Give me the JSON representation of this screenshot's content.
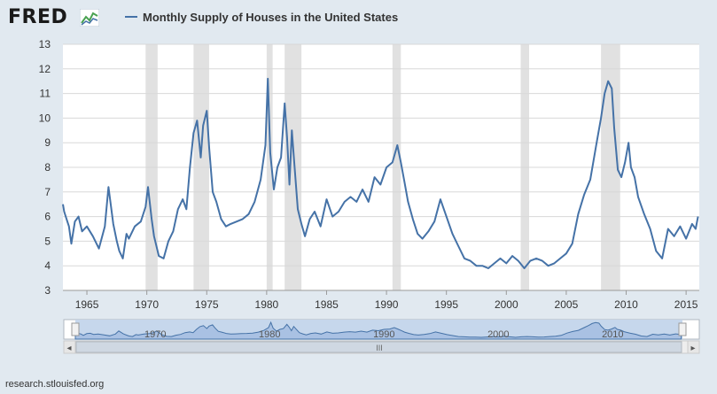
{
  "header": {
    "logo_text": "FRED",
    "legend_label": "Monthly Supply of Houses in the United States"
  },
  "footer": {
    "source": "research.stlouisfed.org"
  },
  "navigator": {
    "labels": [
      "1970",
      "1980",
      "1990",
      "2000",
      "2010"
    ],
    "handle_glyph": "III",
    "left_arrow": "◂",
    "right_arrow": "▸"
  },
  "colors": {
    "series": "#4572a7",
    "recession": "#e1e1e1",
    "plot_bg": "#ffffff",
    "page_bg": "#e1e9f0"
  },
  "chart_data": {
    "type": "line",
    "title": "",
    "xlabel": "",
    "ylabel": "",
    "grid": true,
    "legend": "top-left",
    "xlim": [
      1963.0,
      2016.1
    ],
    "ylim": [
      3,
      13
    ],
    "x_ticks": [
      1965,
      1970,
      1975,
      1980,
      1985,
      1990,
      1995,
      2000,
      2005,
      2010,
      2015
    ],
    "y_ticks": [
      3,
      4,
      5,
      6,
      7,
      8,
      9,
      10,
      11,
      12,
      13
    ],
    "recessions": [
      [
        1969.9,
        1970.9
      ],
      [
        1973.9,
        1975.2
      ],
      [
        1980.0,
        1980.5
      ],
      [
        1981.5,
        1982.9
      ],
      [
        1990.5,
        1991.2
      ],
      [
        2001.2,
        2001.9
      ],
      [
        2007.9,
        2009.5
      ]
    ],
    "series": [
      {
        "name": "Monthly Supply of Houses in the United States",
        "x": [
          1963.0,
          1963.1,
          1963.3,
          1963.5,
          1963.7,
          1964.0,
          1964.3,
          1964.6,
          1965.0,
          1965.5,
          1966.0,
          1966.5,
          1966.8,
          1967.2,
          1967.5,
          1967.7,
          1968.0,
          1968.3,
          1968.5,
          1969.0,
          1969.5,
          1969.9,
          1970.1,
          1970.4,
          1970.6,
          1971.0,
          1971.4,
          1971.8,
          1972.2,
          1972.6,
          1973.0,
          1973.3,
          1973.6,
          1973.9,
          1974.2,
          1974.5,
          1974.7,
          1975.0,
          1975.2,
          1975.5,
          1975.8,
          1976.2,
          1976.6,
          1977.0,
          1977.5,
          1978.0,
          1978.5,
          1979.0,
          1979.5,
          1979.9,
          1980.1,
          1980.3,
          1980.6,
          1980.9,
          1981.2,
          1981.5,
          1981.7,
          1981.9,
          1982.1,
          1982.3,
          1982.6,
          1982.9,
          1983.2,
          1983.6,
          1984.0,
          1984.5,
          1985.0,
          1985.5,
          1986.0,
          1986.5,
          1987.0,
          1987.5,
          1988.0,
          1988.5,
          1989.0,
          1989.5,
          1990.0,
          1990.5,
          1990.9,
          1991.2,
          1991.5,
          1991.8,
          1992.2,
          1992.6,
          1993.0,
          1993.5,
          1994.0,
          1994.5,
          1995.0,
          1995.5,
          1996.0,
          1996.5,
          1997.0,
          1997.5,
          1998.0,
          1998.5,
          1999.0,
          1999.5,
          2000.0,
          2000.5,
          2001.0,
          2001.5,
          2002.0,
          2002.5,
          2003.0,
          2003.5,
          2004.0,
          2004.5,
          2005.0,
          2005.5,
          2006.0,
          2006.5,
          2007.0,
          2007.5,
          2007.9,
          2008.2,
          2008.5,
          2008.8,
          2009.0,
          2009.3,
          2009.6,
          2009.9,
          2010.2,
          2010.4,
          2010.7,
          2011.0,
          2011.5,
          2012.0,
          2012.5,
          2013.0,
          2013.5,
          2014.0,
          2014.5,
          2015.0,
          2015.5,
          2015.8,
          2016.0
        ],
        "values": [
          6.5,
          6.2,
          5.9,
          5.6,
          4.9,
          5.8,
          6.0,
          5.4,
          5.6,
          5.2,
          4.7,
          5.6,
          7.2,
          5.7,
          5.0,
          4.6,
          4.3,
          5.3,
          5.1,
          5.6,
          5.8,
          6.4,
          7.2,
          5.9,
          5.2,
          4.4,
          4.3,
          5.0,
          5.4,
          6.3,
          6.7,
          6.3,
          8.0,
          9.4,
          9.9,
          8.4,
          9.7,
          10.3,
          8.8,
          7.0,
          6.6,
          5.9,
          5.6,
          5.7,
          5.8,
          5.9,
          6.1,
          6.6,
          7.5,
          8.9,
          11.6,
          8.6,
          7.1,
          8.0,
          8.4,
          10.6,
          9.2,
          7.3,
          9.5,
          8.2,
          6.3,
          5.7,
          5.2,
          5.9,
          6.2,
          5.6,
          6.7,
          6.0,
          6.2,
          6.6,
          6.8,
          6.6,
          7.1,
          6.6,
          7.6,
          7.3,
          8.0,
          8.2,
          8.9,
          8.2,
          7.4,
          6.6,
          5.9,
          5.3,
          5.1,
          5.4,
          5.8,
          6.7,
          6.0,
          5.3,
          4.8,
          4.3,
          4.2,
          4.0,
          4.0,
          3.9,
          4.1,
          4.3,
          4.1,
          4.4,
          4.2,
          3.9,
          4.2,
          4.3,
          4.2,
          4.0,
          4.1,
          4.3,
          4.5,
          4.9,
          6.1,
          6.9,
          7.5,
          8.9,
          10.0,
          11.0,
          11.5,
          11.2,
          9.6,
          7.9,
          7.6,
          8.2,
          9.0,
          8.0,
          7.6,
          6.8,
          6.1,
          5.5,
          4.6,
          4.3,
          5.5,
          5.2,
          5.6,
          5.1,
          5.7,
          5.5,
          6.0
        ]
      }
    ]
  }
}
